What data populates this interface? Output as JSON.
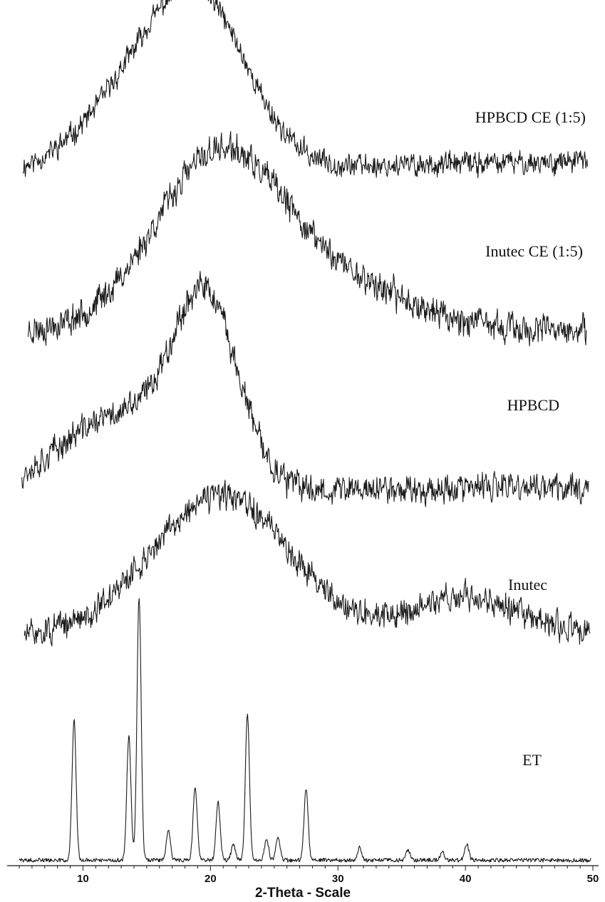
{
  "chart_data": {
    "type": "line",
    "title": "",
    "xlabel": "2-Theta - Scale",
    "ylabel": "",
    "xlim": [
      5,
      50
    ],
    "x_ticks": [
      "10",
      "20",
      "30",
      "40",
      "50"
    ],
    "grid": false,
    "series": [
      {
        "name": "HPBCD CE (1:5)",
        "description": "amorphous halo",
        "halo": {
          "center": 19.2,
          "width": 3.8,
          "peak": 1.0,
          "shoulder_center": 13.5,
          "shoulder_width": 4.0,
          "shoulder": 0.35,
          "baseline_start": 0.05,
          "baseline_end": 0.12
        },
        "noise": 0.08
      },
      {
        "name": "Inutec CE (1:5)",
        "description": "amorphous halo",
        "halo": {
          "center": 20.5,
          "width": 5.0,
          "peak": 1.0,
          "shoulder_center": 30.0,
          "shoulder_width": 6.0,
          "shoulder": 0.25,
          "baseline_start": 0.05,
          "baseline_end": 0.05
        },
        "noise": 0.1
      },
      {
        "name": "HPBCD",
        "description": "amorphous halo",
        "halo": {
          "center": 19.6,
          "width": 2.6,
          "peak": 1.0,
          "shoulder_center": 12.5,
          "shoulder_width": 4.5,
          "shoulder": 0.38,
          "baseline_start": 0.05,
          "baseline_end": 0.08
        },
        "noise": 0.09
      },
      {
        "name": "Inutec",
        "description": "amorphous halo",
        "halo": {
          "center": 20.8,
          "width": 5.5,
          "peak": 1.0,
          "shoulder_center": 40.0,
          "shoulder_width": 4.0,
          "shoulder": 0.25,
          "baseline_start": 0.08,
          "baseline_end": 0.1
        },
        "noise": 0.11
      },
      {
        "name": "ET",
        "description": "crystalline peaks",
        "peaks": [
          {
            "x": 9.3,
            "height": 0.53
          },
          {
            "x": 13.6,
            "height": 0.47
          },
          {
            "x": 14.4,
            "height": 1.0
          },
          {
            "x": 16.7,
            "height": 0.11
          },
          {
            "x": 18.8,
            "height": 0.28
          },
          {
            "x": 20.6,
            "height": 0.22
          },
          {
            "x": 21.8,
            "height": 0.06
          },
          {
            "x": 22.9,
            "height": 0.56
          },
          {
            "x": 24.4,
            "height": 0.08
          },
          {
            "x": 25.3,
            "height": 0.09
          },
          {
            "x": 27.5,
            "height": 0.27
          },
          {
            "x": 31.7,
            "height": 0.05
          },
          {
            "x": 35.5,
            "height": 0.04
          },
          {
            "x": 38.2,
            "height": 0.03
          },
          {
            "x": 40.1,
            "height": 0.06
          }
        ],
        "noise": 0.015
      }
    ]
  }
}
